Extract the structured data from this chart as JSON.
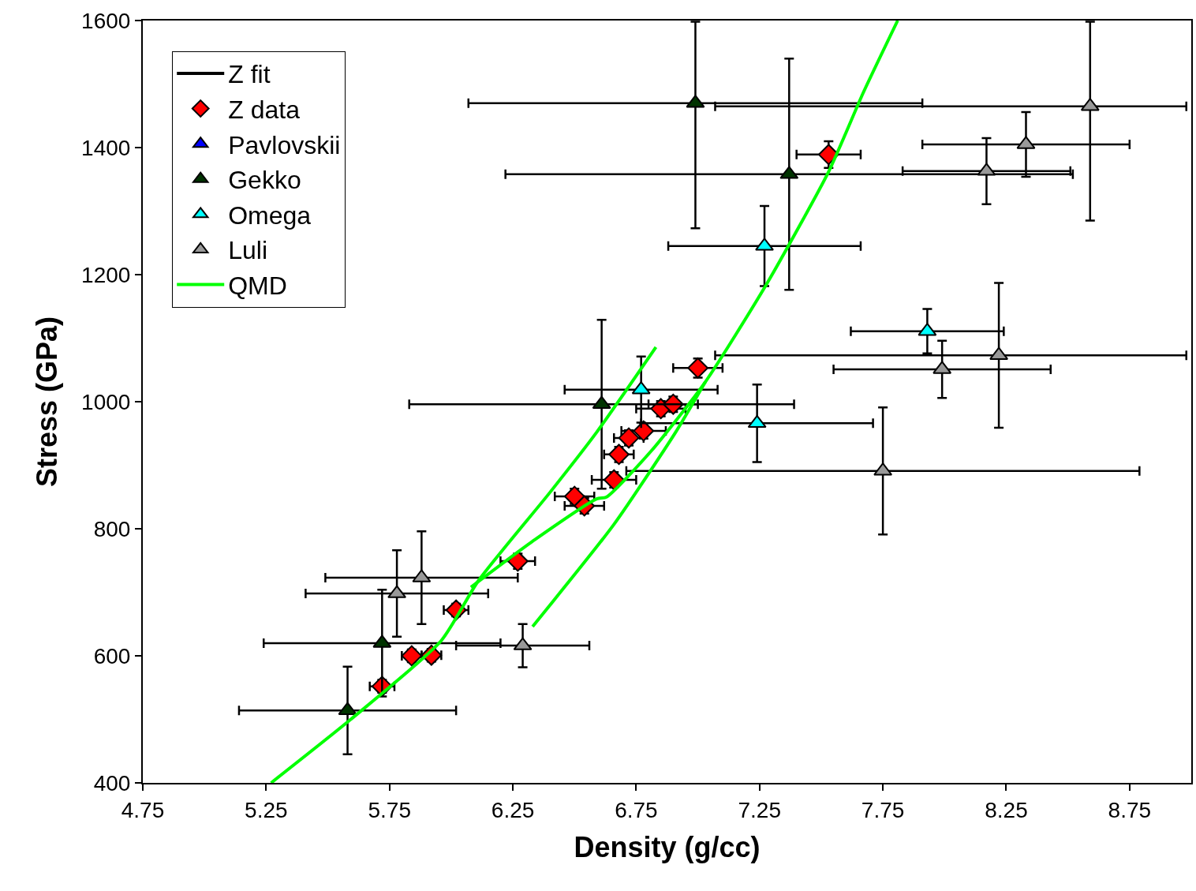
{
  "chart_data": {
    "type": "scatter",
    "xlabel": "Density (g/cc)",
    "ylabel": "Stress (GPa)",
    "xlim": [
      4.75,
      9.0
    ],
    "xticks": [
      4.75,
      5.25,
      5.75,
      6.25,
      6.75,
      7.25,
      7.75,
      8.25,
      8.75
    ],
    "ylim": [
      400,
      1600
    ],
    "yticks": [
      400,
      600,
      800,
      1000,
      1200,
      1400,
      1600
    ],
    "legend": "top left",
    "series": [
      {
        "name": "Z fit",
        "type": "line",
        "color": "#000000"
      },
      {
        "name": "Z data",
        "marker": "diamond",
        "color": "#ff0000",
        "x": [
          5.72,
          5.84,
          5.92,
          6.02,
          6.27,
          6.5,
          6.54,
          6.66,
          6.68,
          6.72,
          6.78,
          6.85,
          6.9,
          7.0,
          7.53
        ],
        "values": [
          552,
          600,
          601,
          672,
          749,
          851,
          836,
          877,
          917,
          943,
          954,
          989,
          996,
          1053,
          1389
        ],
        "errors": [
          10,
          10,
          10,
          10,
          12,
          12,
          12,
          12,
          12,
          12,
          12,
          12,
          12,
          15,
          21
        ],
        "xerrors": [
          0.05,
          0.04,
          0.04,
          0.05,
          0.07,
          0.08,
          0.08,
          0.09,
          0.06,
          0.06,
          0.09,
          0.1,
          0.1,
          0.1,
          0.13
        ]
      },
      {
        "name": "Pavlovskii",
        "marker": "triangle",
        "color": "#0000ff"
      },
      {
        "name": "Gekko",
        "marker": "triangle",
        "color": "#003300",
        "x": [
          5.58,
          5.72,
          6.61,
          6.99,
          7.37
        ],
        "values": [
          514,
          620,
          996,
          1470,
          1358
        ],
        "errors": [
          69,
          84,
          133,
          [
            1273,
            1598
          ],
          182
        ],
        "xerrors": [
          0.44,
          0.48,
          0.78,
          0.92,
          1.15
        ]
      },
      {
        "name": "Omega",
        "marker": "triangle",
        "color": "#00ffff",
        "x": [
          6.77,
          7.24,
          7.27,
          7.93
        ],
        "values": [
          1019,
          966,
          1245,
          1111
        ],
        "errors": [
          52,
          61,
          63,
          35
        ],
        "xerrors": [
          0.31,
          0.47,
          0.39,
          0.31
        ]
      },
      {
        "name": "Luli",
        "marker": "triangle",
        "color": "#999999",
        "x": [
          5.78,
          5.88,
          6.29,
          7.75,
          7.99,
          8.22,
          8.17,
          8.33,
          8.59
        ],
        "values": [
          698,
          723,
          616,
          891,
          1051,
          1073,
          1363,
          1405,
          1465
        ],
        "errors": [
          68,
          73,
          34,
          100,
          45,
          114,
          52,
          51,
          [
            1285,
            1598
          ]
        ],
        "xerrors": [
          0.37,
          0.39,
          0.27,
          1.04,
          0.44,
          [
            7.07,
            8.98
          ],
          0.34,
          0.42,
          [
            7.07,
            8.98
          ]
        ]
      },
      {
        "name": "QMD",
        "type": "line",
        "color": "#00ff00",
        "x": [
          5.27,
          5.59,
          5.96,
          6.11,
          6.4,
          6.59,
          6.83
        ],
        "values": [
          400,
          499,
          624,
          718,
          857,
          952,
          1086
        ]
      },
      {
        "type": "line",
        "color": "#00ff00",
        "x": [
          6.08,
          6.34,
          6.59,
          6.63,
          6.81,
          7.03,
          7.28,
          7.53,
          7.67,
          7.81
        ],
        "values": [
          708,
          783,
          847,
          850,
          922,
          1031,
          1186,
          1362,
          1486,
          1600
        ]
      },
      {
        "type": "line",
        "color": "#00ff00",
        "x": [
          6.33,
          6.66,
          6.91,
          7.03
        ],
        "values": [
          646,
          807,
          952,
          1031
        ]
      }
    ]
  }
}
